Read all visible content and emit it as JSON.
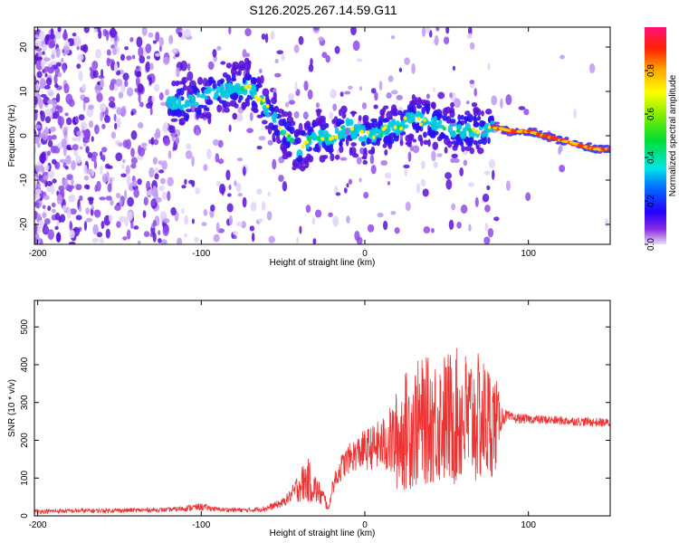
{
  "title": "S126.2025.267.14.59.G11",
  "chart_data": [
    {
      "type": "heatmap",
      "name": "spectrogram",
      "xlabel": "Height of straight line (km)",
      "ylabel": "Frequency (Hz)",
      "xlim": [
        -202,
        150
      ],
      "ylim": [
        -24.5,
        24.5
      ],
      "xticks": [
        -200,
        -100,
        0,
        100
      ],
      "xtick_labels": [
        "-200",
        "-100",
        "0",
        "100"
      ],
      "yticks": [
        -20,
        -10,
        0,
        10,
        20
      ],
      "ytick_labels": [
        "-20",
        "-10",
        "0",
        "10",
        "20"
      ],
      "ridge": {
        "x": [
          -110,
          -90,
          -70,
          -60,
          -50,
          -40,
          -30,
          -20,
          -10,
          0,
          10,
          20,
          30,
          40,
          50,
          60,
          70,
          78,
          90,
          100,
          110,
          120,
          130,
          140,
          150
        ],
        "y": [
          7,
          10,
          11,
          6,
          1,
          -3,
          0,
          -1,
          2,
          0,
          1,
          2,
          4,
          3,
          2,
          1,
          1,
          2,
          1,
          1,
          0,
          -1,
          -2,
          -3,
          -3
        ]
      },
      "colorbar": {
        "label": "Normalized spectral amplitude",
        "ticks": [
          0.0,
          0.2,
          0.4,
          0.6,
          0.8
        ],
        "tick_labels": [
          "0.0",
          "0.2",
          "0.4",
          "0.6",
          "0.8"
        ],
        "range": [
          0,
          1
        ]
      }
    },
    {
      "type": "line",
      "name": "snr",
      "xlabel": "Height of straight line (km)",
      "ylabel": "SNR (10 * v/v)",
      "xlim": [
        -202,
        150
      ],
      "ylim": [
        0,
        570
      ],
      "xticks": [
        -200,
        -100,
        0,
        100
      ],
      "xtick_labels": [
        "-200",
        "-100",
        "0",
        "100"
      ],
      "yticks": [
        0,
        100,
        200,
        300,
        400,
        500
      ],
      "ytick_labels": [
        "0",
        "100",
        "200",
        "300",
        "400",
        "500"
      ],
      "color": "#ee3333",
      "series": [
        {
          "name": "SNR",
          "x": [
            -202,
            -180,
            -160,
            -140,
            -120,
            -110,
            -100,
            -90,
            -80,
            -70,
            -60,
            -50,
            -45,
            -40,
            -35,
            -30,
            -25,
            -22,
            -20,
            -15,
            -10,
            -5,
            0,
            5,
            10,
            15,
            20,
            25,
            30,
            35,
            40,
            45,
            50,
            55,
            60,
            65,
            70,
            75,
            80,
            83,
            86,
            90,
            100,
            110,
            120,
            130,
            140,
            150
          ],
          "center": [
            12,
            13,
            14,
            15,
            16,
            20,
            24,
            17,
            16,
            15,
            20,
            35,
            55,
            80,
            95,
            70,
            45,
            18,
            75,
            125,
            150,
            165,
            175,
            182,
            188,
            195,
            200,
            225,
            240,
            248,
            252,
            256,
            258,
            260,
            258,
            256,
            254,
            250,
            245,
            260,
            265,
            258,
            256,
            254,
            252,
            250,
            248,
            246
          ],
          "spread": [
            6,
            6,
            6,
            6,
            6,
            8,
            10,
            6,
            6,
            6,
            8,
            12,
            18,
            45,
            60,
            40,
            25,
            5,
            20,
            35,
            40,
            45,
            55,
            60,
            70,
            90,
            140,
            160,
            170,
            170,
            170,
            175,
            180,
            185,
            185,
            180,
            175,
            165,
            130,
            40,
            18,
            14,
            12,
            12,
            12,
            12,
            12,
            12
          ]
        }
      ]
    }
  ]
}
